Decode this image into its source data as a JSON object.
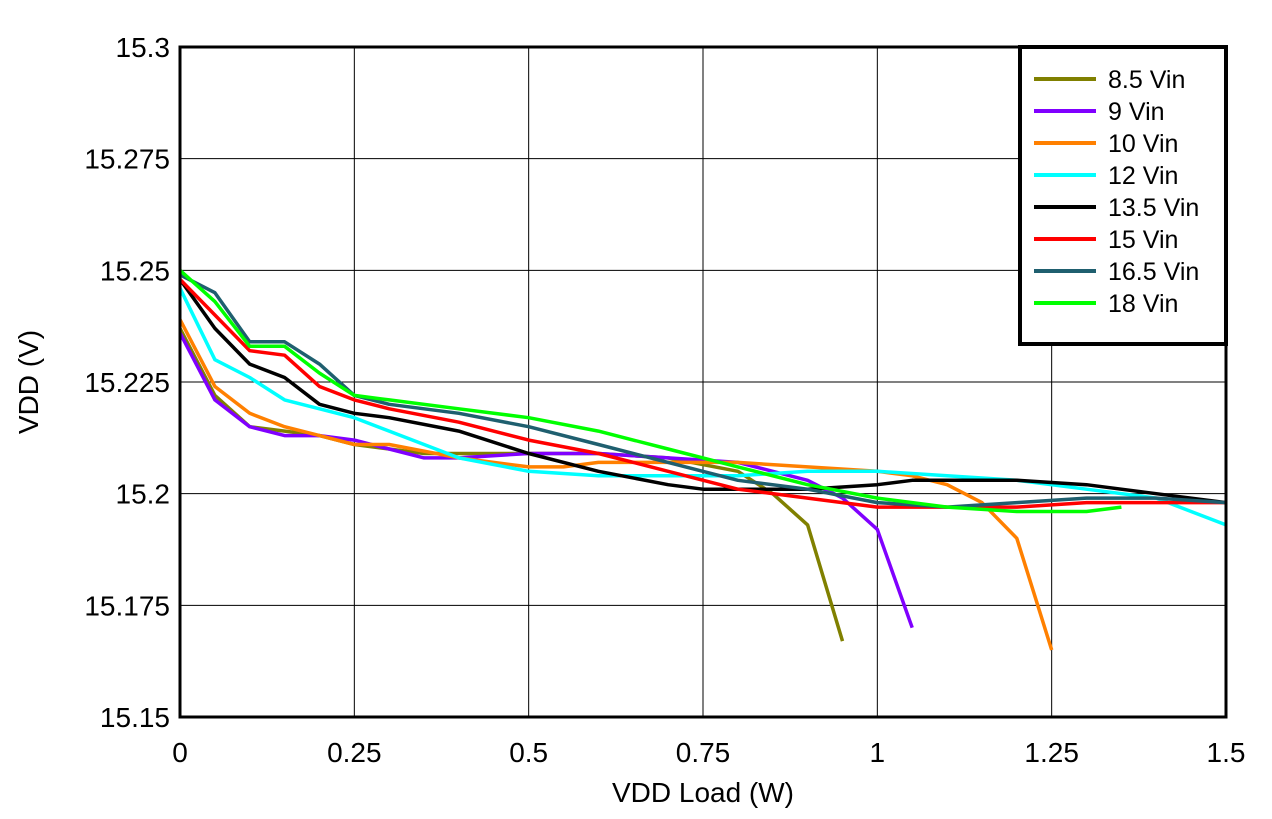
{
  "chart_data": {
    "type": "line",
    "title": "",
    "xlabel": "VDD Load (W)",
    "ylabel": "VDD (V)",
    "xlim": [
      0,
      1.5
    ],
    "ylim": [
      15.15,
      15.3
    ],
    "xticks": [
      "0",
      "0.25",
      "0.5",
      "0.75",
      "1",
      "1.25",
      "1.5"
    ],
    "yticks": [
      "15.15",
      "15.175",
      "15.2",
      "15.225",
      "15.25",
      "15.275",
      "15.3"
    ],
    "grid": true,
    "legend_position": "top-right",
    "series": [
      {
        "name": "8.5 Vin",
        "color": "#808000",
        "x": [
          0,
          0.05,
          0.1,
          0.15,
          0.2,
          0.25,
          0.3,
          0.35,
          0.4,
          0.5,
          0.6,
          0.7,
          0.8,
          0.85,
          0.9,
          0.95
        ],
        "y": [
          15.237,
          15.222,
          15.215,
          15.214,
          15.213,
          15.211,
          15.21,
          15.209,
          15.209,
          15.209,
          15.209,
          15.208,
          15.205,
          15.2,
          15.193,
          15.167
        ]
      },
      {
        "name": "9 Vin",
        "color": "#8000FF",
        "x": [
          0,
          0.05,
          0.1,
          0.15,
          0.2,
          0.25,
          0.3,
          0.35,
          0.4,
          0.5,
          0.6,
          0.7,
          0.8,
          0.85,
          0.9,
          0.95,
          1.0,
          1.05
        ],
        "y": [
          15.236,
          15.221,
          15.215,
          15.213,
          15.213,
          15.212,
          15.21,
          15.208,
          15.208,
          15.209,
          15.209,
          15.208,
          15.207,
          15.205,
          15.203,
          15.199,
          15.192,
          15.17
        ]
      },
      {
        "name": "10 Vin",
        "color": "#FF8000",
        "x": [
          0,
          0.05,
          0.1,
          0.15,
          0.2,
          0.25,
          0.3,
          0.4,
          0.5,
          0.55,
          0.6,
          0.7,
          0.8,
          0.9,
          1.0,
          1.05,
          1.1,
          1.15,
          1.2,
          1.25
        ],
        "y": [
          15.239,
          15.224,
          15.218,
          15.215,
          15.213,
          15.211,
          15.211,
          15.208,
          15.206,
          15.206,
          15.207,
          15.207,
          15.207,
          15.206,
          15.205,
          15.204,
          15.202,
          15.198,
          15.19,
          15.165
        ]
      },
      {
        "name": "12 Vin",
        "color": "#00FFFF",
        "x": [
          0,
          0.05,
          0.1,
          0.15,
          0.2,
          0.25,
          0.3,
          0.4,
          0.5,
          0.6,
          0.7,
          0.8,
          0.9,
          1.0,
          1.1,
          1.2,
          1.3,
          1.4,
          1.45,
          1.5
        ],
        "y": [
          15.246,
          15.23,
          15.226,
          15.221,
          15.219,
          15.217,
          15.214,
          15.208,
          15.205,
          15.204,
          15.204,
          15.204,
          15.205,
          15.205,
          15.204,
          15.203,
          15.201,
          15.199,
          15.196,
          15.193
        ]
      },
      {
        "name": "13.5 Vin",
        "color": "#000000",
        "x": [
          0,
          0.05,
          0.1,
          0.15,
          0.2,
          0.25,
          0.3,
          0.4,
          0.5,
          0.6,
          0.7,
          0.75,
          0.8,
          0.9,
          1.0,
          1.05,
          1.2,
          1.3,
          1.4,
          1.5
        ],
        "y": [
          15.248,
          15.237,
          15.229,
          15.226,
          15.22,
          15.218,
          15.217,
          15.214,
          15.209,
          15.205,
          15.202,
          15.201,
          15.201,
          15.201,
          15.202,
          15.203,
          15.203,
          15.202,
          15.2,
          15.198
        ]
      },
      {
        "name": "15 Vin",
        "color": "#FF0000",
        "x": [
          0,
          0.05,
          0.1,
          0.15,
          0.2,
          0.25,
          0.3,
          0.4,
          0.5,
          0.6,
          0.7,
          0.8,
          0.9,
          1.0,
          1.1,
          1.2,
          1.3,
          1.4,
          1.5
        ],
        "y": [
          15.248,
          15.24,
          15.232,
          15.231,
          15.224,
          15.221,
          15.219,
          15.216,
          15.212,
          15.209,
          15.205,
          15.201,
          15.199,
          15.197,
          15.197,
          15.197,
          15.198,
          15.198,
          15.198
        ]
      },
      {
        "name": "16.5 Vin",
        "color": "#1F5F6F",
        "x": [
          0,
          0.05,
          0.1,
          0.15,
          0.2,
          0.25,
          0.3,
          0.4,
          0.5,
          0.6,
          0.7,
          0.8,
          0.9,
          1.0,
          1.1,
          1.2,
          1.3,
          1.4,
          1.5
        ],
        "y": [
          15.249,
          15.245,
          15.234,
          15.234,
          15.229,
          15.222,
          15.22,
          15.218,
          15.215,
          15.211,
          15.207,
          15.203,
          15.201,
          15.198,
          15.197,
          15.198,
          15.199,
          15.199,
          15.198
        ]
      },
      {
        "name": "18 Vin",
        "color": "#00FF00",
        "x": [
          0,
          0.05,
          0.1,
          0.15,
          0.2,
          0.25,
          0.3,
          0.4,
          0.5,
          0.6,
          0.7,
          0.8,
          0.9,
          1.0,
          1.1,
          1.2,
          1.3,
          1.35
        ],
        "y": [
          15.25,
          15.243,
          15.233,
          15.233,
          15.227,
          15.222,
          15.221,
          15.219,
          15.217,
          15.214,
          15.21,
          15.206,
          15.202,
          15.199,
          15.197,
          15.196,
          15.196,
          15.197
        ]
      }
    ]
  }
}
